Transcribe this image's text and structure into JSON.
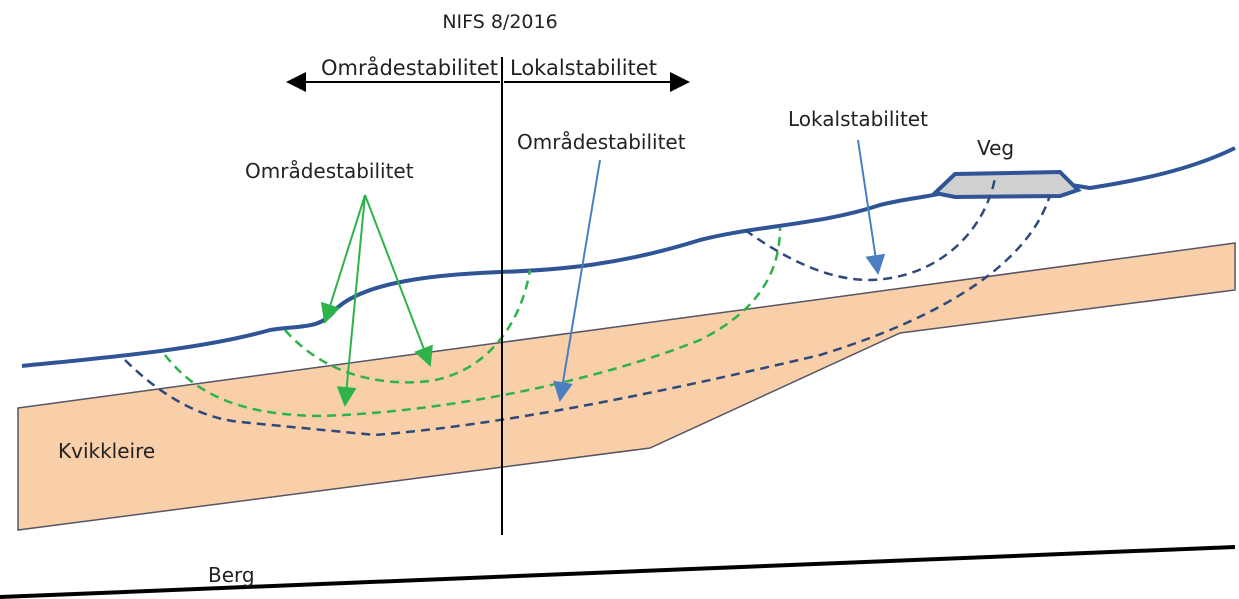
{
  "title": "NIFS 8/2016",
  "header": {
    "left": "Områdestabilitet",
    "right": "Lokalstabilitet"
  },
  "labels": {
    "green": "Områdestabilitet",
    "blue": "Områdestabilitet",
    "local": "Lokalstabilitet",
    "road": "Veg",
    "clay": "Kvikkleire",
    "rock": "Berg"
  }
}
